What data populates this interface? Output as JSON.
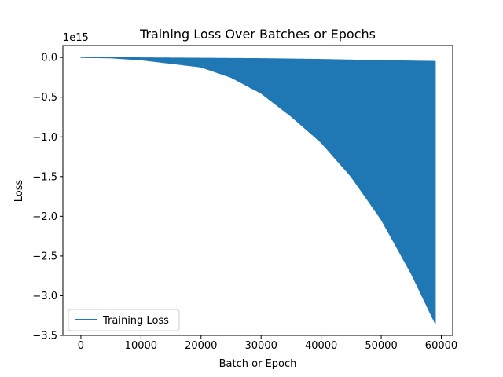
{
  "chart_data": {
    "type": "line",
    "title": "Training Loss Over Batches or Epochs",
    "xlabel": "Batch or Epoch",
    "ylabel": "Loss",
    "y_offset_text": "1e15",
    "xlim": [
      -3000,
      61900
    ],
    "ylim": [
      -3.5,
      0.15
    ],
    "y_scale_factor": 1000000000000000.0,
    "xticks": [
      0,
      10000,
      20000,
      30000,
      40000,
      50000,
      60000
    ],
    "xtick_labels": [
      "0",
      "10000",
      "20000",
      "30000",
      "40000",
      "50000",
      "60000"
    ],
    "yticks": [
      0.0,
      -0.5,
      -1.0,
      -1.5,
      -2.0,
      -2.5,
      -3.0,
      -3.5
    ],
    "ytick_labels": [
      "0.0",
      "−0.5",
      "−1.0",
      "−1.5",
      "−2.0",
      "−2.5",
      "−3.0",
      "−3.5"
    ],
    "grid": false,
    "legend": {
      "location": "lower-left",
      "entries": [
        "Training Loss"
      ]
    },
    "series": [
      {
        "name": "Training Loss",
        "color": "#1f77b4",
        "x_range": [
          0,
          59000
        ],
        "envelope_upper": {
          "x": [
            0,
            10000,
            20000,
            30000,
            40000,
            50000,
            59000
          ],
          "y": [
            0.0,
            -0.005,
            -0.01,
            -0.015,
            -0.025,
            -0.04,
            -0.05
          ]
        },
        "envelope_lower": {
          "x": [
            0,
            5000,
            10000,
            15000,
            20000,
            25000,
            30000,
            35000,
            40000,
            45000,
            50000,
            55000,
            59000
          ],
          "y": [
            0.0,
            -0.005,
            -0.03,
            -0.075,
            -0.12,
            -0.25,
            -0.45,
            -0.74,
            -1.07,
            -1.5,
            -2.04,
            -2.72,
            -3.35
          ]
        }
      }
    ]
  }
}
